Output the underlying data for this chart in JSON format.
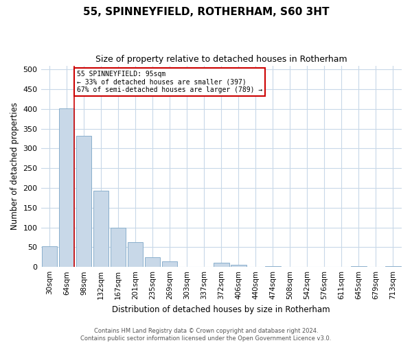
{
  "title": "55, SPINNEYFIELD, ROTHERHAM, S60 3HT",
  "subtitle": "Size of property relative to detached houses in Rotherham",
  "xlabel": "Distribution of detached houses by size in Rotherham",
  "ylabel": "Number of detached properties",
  "bar_labels": [
    "30sqm",
    "64sqm",
    "98sqm",
    "132sqm",
    "167sqm",
    "201sqm",
    "235sqm",
    "269sqm",
    "303sqm",
    "337sqm",
    "372sqm",
    "406sqm",
    "440sqm",
    "474sqm",
    "508sqm",
    "542sqm",
    "576sqm",
    "611sqm",
    "645sqm",
    "679sqm",
    "713sqm"
  ],
  "bar_values": [
    53,
    401,
    332,
    193,
    99,
    63,
    25,
    15,
    0,
    0,
    10,
    5,
    0,
    2,
    0,
    0,
    0,
    0,
    2,
    0,
    2
  ],
  "bar_color": "#c8d8e8",
  "bar_edge_color": "#8aafcc",
  "property_sqm": 95,
  "property_label": "55 SPINNEYFIELD: 95sqm",
  "smaller_pct": 33,
  "smaller_count": 397,
  "larger_pct": 67,
  "larger_count": 789,
  "vline_color": "#cc0000",
  "annotation_box_edge_color": "#cc0000",
  "ylim": [
    0,
    510
  ],
  "yticks": [
    0,
    50,
    100,
    150,
    200,
    250,
    300,
    350,
    400,
    450,
    500
  ],
  "footer_line1": "Contains HM Land Registry data © Crown copyright and database right 2024.",
  "footer_line2": "Contains public sector information licensed under the Open Government Licence v3.0.",
  "bg_color": "#ffffff",
  "grid_color": "#c8d8e8"
}
